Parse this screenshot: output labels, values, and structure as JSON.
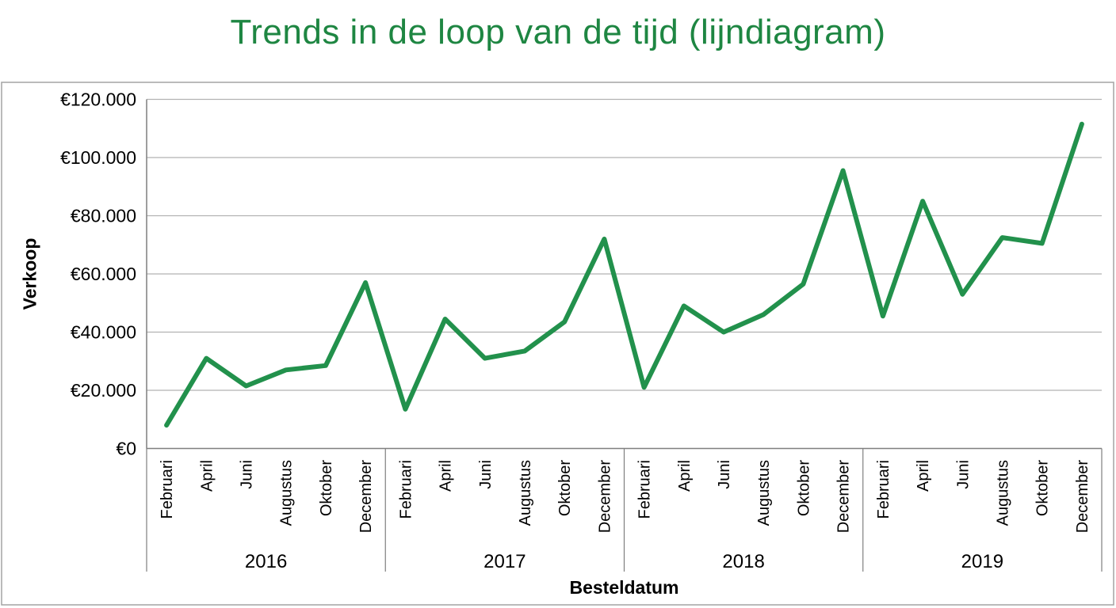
{
  "title": {
    "text": "Trends in de loop van de tijd (lijndiagram)",
    "color": "#1e8642"
  },
  "chart_data": {
    "type": "line",
    "title": "Trends in de loop van de tijd (lijndiagram)",
    "x_axis_label": "Besteldatum",
    "y_axis_label": "Verkoop",
    "legend": "none",
    "grid": "horizontal",
    "ylim": [
      0,
      120000
    ],
    "y_ticks": [
      {
        "label": "€120.000",
        "value": 120000
      },
      {
        "label": "€100.000",
        "value": 100000
      },
      {
        "label": "€80.000",
        "value": 80000
      },
      {
        "label": "€60.000",
        "value": 60000
      },
      {
        "label": "€40.000",
        "value": 40000
      },
      {
        "label": "€20.000",
        "value": 20000
      },
      {
        "label": "€0",
        "value": 0
      }
    ],
    "years": [
      "2016",
      "2017",
      "2018",
      "2019"
    ],
    "months_labeled": [
      "Februari",
      "April",
      "Juni",
      "Augustus",
      "Oktober",
      "December"
    ],
    "series": [
      {
        "name": "Verkoop",
        "color": "#22914c",
        "values": [
          8000,
          31000,
          21500,
          27000,
          28500,
          57000,
          13500,
          44500,
          31000,
          33500,
          43500,
          72000,
          21000,
          49000,
          40000,
          46000,
          56500,
          95500,
          45500,
          85000,
          53000,
          72500,
          70500,
          111500
        ]
      }
    ]
  },
  "colors": {
    "line": "#22914c",
    "title": "#1e8642",
    "gridline": "#b2b2b2",
    "axis": "#7f7f7f",
    "frame": "#a3a3a3",
    "label_text": "#000000"
  }
}
